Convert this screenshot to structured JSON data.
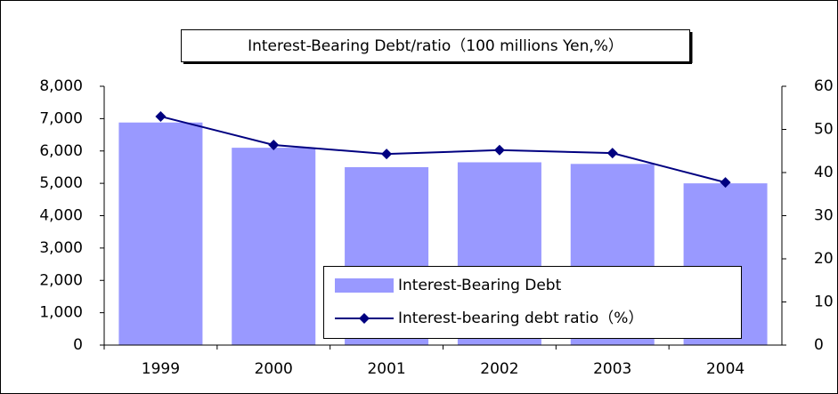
{
  "chart_data": {
    "type": "bar",
    "title": "Interest-Bearing Debt/ratio（100 millions Yen,%）",
    "categories": [
      "1999",
      "2000",
      "2001",
      "2002",
      "2003",
      "2004"
    ],
    "series": [
      {
        "name": "Interest-Bearing Debt",
        "type": "bar",
        "color": "#9999ff",
        "values": [
          6880,
          6100,
          5500,
          5650,
          5600,
          5000
        ]
      },
      {
        "name": "Interest-bearing debt ratio（%）",
        "type": "line",
        "axis": "y2",
        "color": "#000080",
        "values": [
          53.0,
          46.4,
          44.3,
          45.2,
          44.5,
          37.7
        ]
      }
    ],
    "ylim": [
      0,
      8000
    ],
    "yticks": [
      0,
      {
        "value": 1000,
        "label": "1,000"
      },
      {
        "value": 2000,
        "label": "2,000"
      },
      {
        "value": 3000,
        "label": "3,000"
      },
      {
        "value": 4000,
        "label": "4,000"
      },
      {
        "value": 5000,
        "label": "5,000"
      },
      {
        "value": 6000,
        "label": "6,000"
      },
      {
        "value": 7000,
        "label": "7,000"
      },
      {
        "value": 8000,
        "label": "8,000"
      }
    ],
    "y2lim": [
      0,
      60
    ],
    "y2ticks": [
      0,
      10,
      20,
      30,
      40,
      50,
      60
    ],
    "legend": "lower right",
    "grid": false
  }
}
